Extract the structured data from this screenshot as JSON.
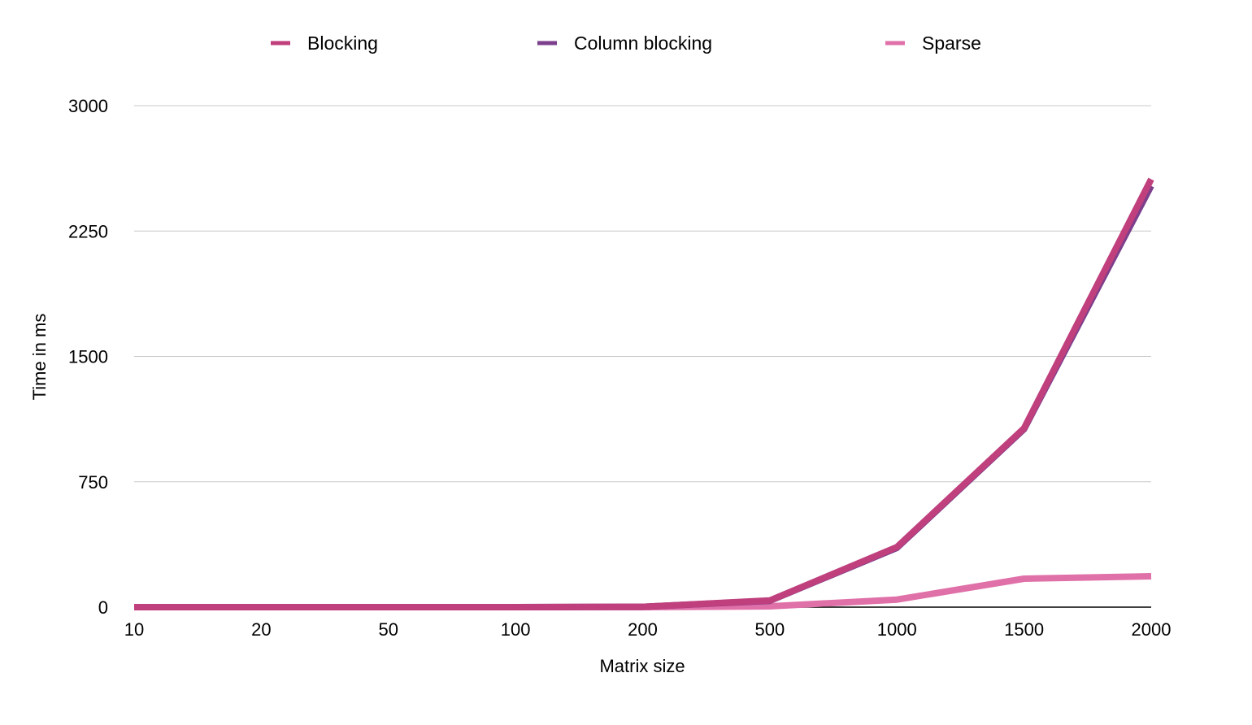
{
  "chart_data": {
    "type": "line",
    "title": "",
    "xlabel": "Matrix size",
    "ylabel": "Time in ms",
    "categories": [
      "10",
      "20",
      "50",
      "100",
      "200",
      "500",
      "1000",
      "1500",
      "2000"
    ],
    "ylim": [
      0,
      3000
    ],
    "yticks": [
      "0",
      "750",
      "1500",
      "2250",
      "3000"
    ],
    "grid": true,
    "legend": "top",
    "series": [
      {
        "name": "Blocking",
        "color": "#c03f7d",
        "values": [
          0,
          0,
          0,
          0,
          2,
          40,
          360,
          1070,
          2560
        ]
      },
      {
        "name": "Column blocking",
        "color": "#7b3f8c",
        "values": [
          0,
          0,
          0,
          0,
          2,
          38,
          355,
          1065,
          2520
        ]
      },
      {
        "name": "Sparse",
        "color": "#e070a8",
        "values": [
          0,
          0,
          0,
          0,
          0,
          5,
          45,
          170,
          185
        ]
      }
    ]
  }
}
